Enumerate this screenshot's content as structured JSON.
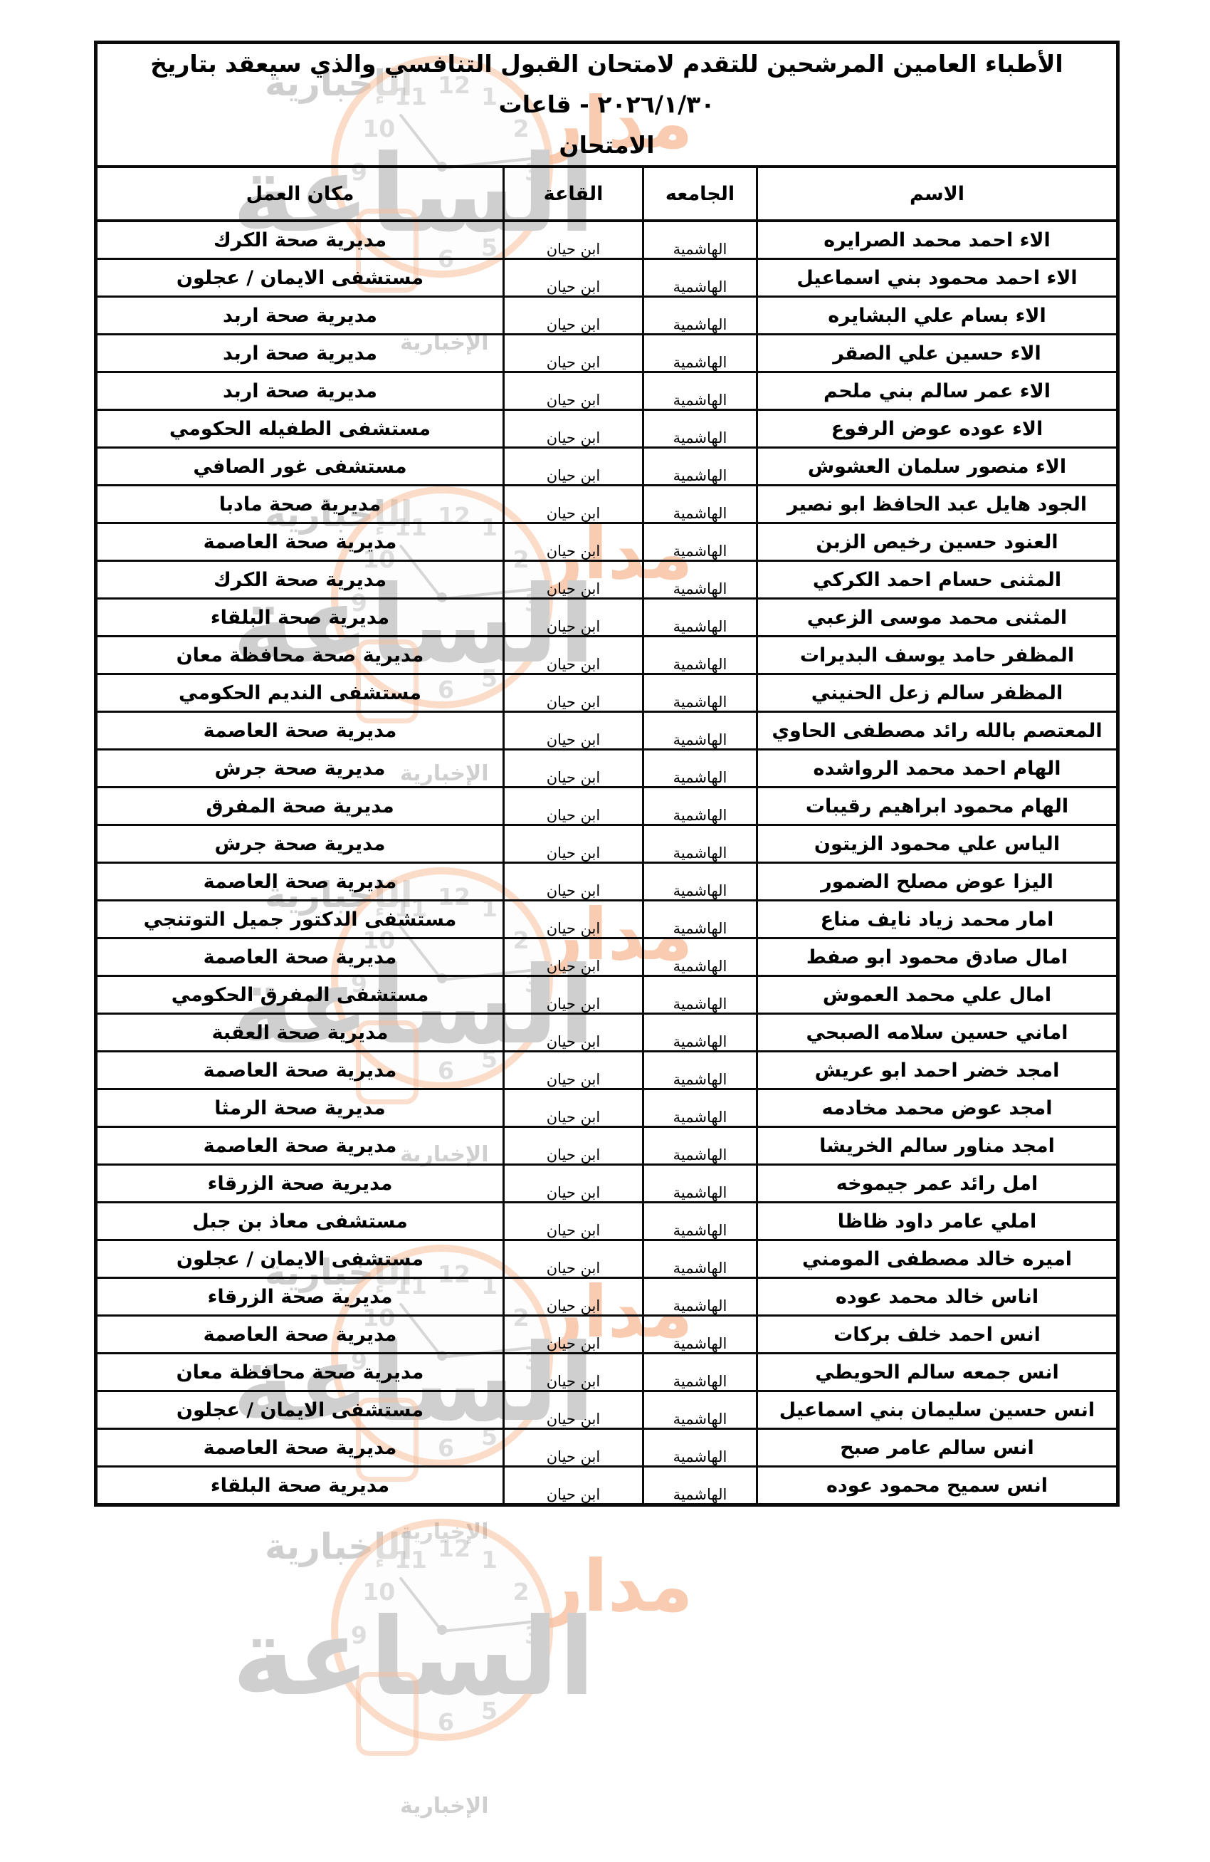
{
  "title": "الأطباء العامين المرشحين للتقدم لامتحان القبول التنافسي والذي سيعقد بتاريخ ٢٠٢٦/١/٣٠ - قاعات\nالامتحان",
  "table": {
    "headers": {
      "name": "الاسم",
      "university": "الجامعه",
      "hall": "القاعة",
      "workplace": "مكان العمل"
    },
    "rows": [
      {
        "name": "الاء احمد محمد الصرايره",
        "university": "الهاشمية",
        "hall": "ابن حيان",
        "workplace": "مديرية صحة الكرك"
      },
      {
        "name": "الاء احمد محمود بني اسماعيل",
        "university": "الهاشمية",
        "hall": "ابن حيان",
        "workplace": "مستشفى الايمان / عجلون"
      },
      {
        "name": "الاء بسام علي البشايره",
        "university": "الهاشمية",
        "hall": "ابن حيان",
        "workplace": "مديرية صحة اربد"
      },
      {
        "name": "الاء حسين علي الصقر",
        "university": "الهاشمية",
        "hall": "ابن حيان",
        "workplace": "مديرية صحة اربد"
      },
      {
        "name": "الاء عمر سالم بني ملحم",
        "university": "الهاشمية",
        "hall": "ابن حيان",
        "workplace": "مديرية صحة اربد"
      },
      {
        "name": "الاء عوده عوض الرفوع",
        "university": "الهاشمية",
        "hall": "ابن حيان",
        "workplace": "مستشفى الطفيله الحكومي"
      },
      {
        "name": "الاء منصور سلمان العشوش",
        "university": "الهاشمية",
        "hall": "ابن حيان",
        "workplace": "مستشفى غور الصافي"
      },
      {
        "name": "الجود هايل عبد الحافظ ابو نصير",
        "university": "الهاشمية",
        "hall": "ابن حيان",
        "workplace": "مديرية صحة مادبا"
      },
      {
        "name": "العنود حسين رخيص الزبن",
        "university": "الهاشمية",
        "hall": "ابن حيان",
        "workplace": "مديرية صحة العاصمة"
      },
      {
        "name": "المثنى حسام احمد الكركي",
        "university": "الهاشمية",
        "hall": "ابن حيان",
        "workplace": "مديرية صحة الكرك"
      },
      {
        "name": "المثنى محمد موسى الزعبي",
        "university": "الهاشمية",
        "hall": "ابن حيان",
        "workplace": "مديرية صحة البلقاء"
      },
      {
        "name": "المظفر حامد يوسف البديرات",
        "university": "الهاشمية",
        "hall": "ابن حيان",
        "workplace": "مديرية صحة محافظة معان"
      },
      {
        "name": "المظفر سالم زعل الحنيني",
        "university": "الهاشمية",
        "hall": "ابن حيان",
        "workplace": "مستشفى النديم الحكومي"
      },
      {
        "name": "المعتصم بالله رائد مصطفى الحاوي",
        "university": "الهاشمية",
        "hall": "ابن حيان",
        "workplace": "مديرية صحة العاصمة"
      },
      {
        "name": "الهام احمد محمد الرواشده",
        "university": "الهاشمية",
        "hall": "ابن حيان",
        "workplace": "مديرية صحة جرش"
      },
      {
        "name": "الهام محمود ابراهيم رقيبات",
        "university": "الهاشمية",
        "hall": "ابن حيان",
        "workplace": "مديرية صحة المفرق"
      },
      {
        "name": "الياس علي محمود الزيتون",
        "university": "الهاشمية",
        "hall": "ابن حيان",
        "workplace": "مديرية صحة جرش"
      },
      {
        "name": "اليزا عوض مصلح الضمور",
        "university": "الهاشمية",
        "hall": "ابن حيان",
        "workplace": "مديرية صحة العاصمة"
      },
      {
        "name": "امار محمد زياد نايف مناع",
        "university": "الهاشمية",
        "hall": "ابن حيان",
        "workplace": "مستشفى الدكتور جميل التوتنجي"
      },
      {
        "name": "امال صادق محمود ابو صفط",
        "university": "الهاشمية",
        "hall": "ابن حيان",
        "workplace": "مديرية صحة العاصمة"
      },
      {
        "name": "امال علي محمد العموش",
        "university": "الهاشمية",
        "hall": "ابن حيان",
        "workplace": "مستشفى المفرق الحكومي"
      },
      {
        "name": "اماني حسين سلامه الصبحي",
        "university": "الهاشمية",
        "hall": "ابن حيان",
        "workplace": "مديرية صحة العقبة"
      },
      {
        "name": "امجد خضر احمد ابو عريش",
        "university": "الهاشمية",
        "hall": "ابن حيان",
        "workplace": "مديرية صحة العاصمة"
      },
      {
        "name": "امجد عوض محمد مخادمه",
        "university": "الهاشمية",
        "hall": "ابن حيان",
        "workplace": "مديرية صحة الرمثا"
      },
      {
        "name": "امجد مناور سالم الخريشا",
        "university": "الهاشمية",
        "hall": "ابن حيان",
        "workplace": "مديرية صحة العاصمة"
      },
      {
        "name": "امل رائد عمر جيموخه",
        "university": "الهاشمية",
        "hall": "ابن حيان",
        "workplace": "مديرية صحة الزرقاء"
      },
      {
        "name": "املي عامر داود ظاظا",
        "university": "الهاشمية",
        "hall": "ابن حيان",
        "workplace": "مستشفى معاذ بن جبل"
      },
      {
        "name": "اميره خالد مصطفى المومني",
        "university": "الهاشمية",
        "hall": "ابن حيان",
        "workplace": "مستشفى الايمان / عجلون"
      },
      {
        "name": "اناس خالد محمد عوده",
        "university": "الهاشمية",
        "hall": "ابن حيان",
        "workplace": "مديرية صحة الزرقاء"
      },
      {
        "name": "انس احمد خلف بركات",
        "university": "الهاشمية",
        "hall": "ابن حيان",
        "workplace": "مديرية صحة العاصمة"
      },
      {
        "name": "انس جمعه سالم الحويطي",
        "university": "الهاشمية",
        "hall": "ابن حيان",
        "workplace": "مديرية صحة محافظة معان"
      },
      {
        "name": "انس حسين سليمان بني اسماعيل",
        "university": "الهاشمية",
        "hall": "ابن حيان",
        "workplace": "مستشفى الايمان / عجلون"
      },
      {
        "name": "انس سالم عامر صبح",
        "university": "الهاشمية",
        "hall": "ابن حيان",
        "workplace": "مديرية صحة العاصمة"
      },
      {
        "name": "انس سميح محمود عوده",
        "university": "الهاشمية",
        "hall": "ابن حيان",
        "workplace": "مديرية صحة البلقاء"
      }
    ]
  },
  "watermark": {
    "brand": "مدار",
    "brand2": "الساعة",
    "sub": "الإخبارية",
    "orange": "#f08a4d",
    "gray": "#a8a8a8",
    "clock_numbers": [
      "12",
      "1",
      "2",
      "3",
      "5",
      "6",
      "9",
      "10",
      "11"
    ]
  }
}
